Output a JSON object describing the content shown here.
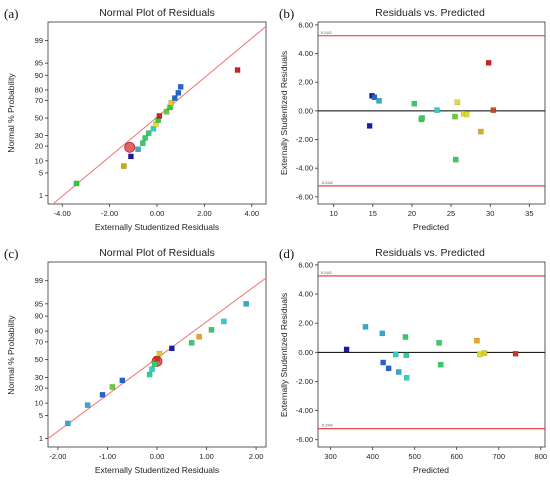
{
  "chart_data": [
    {
      "panel": "(a)",
      "type": "scatter",
      "title": "Normal Plot of Residuals",
      "xlabel": "Externally Studentized Residuals",
      "ylabel": "Normal % Probability",
      "xlim": [
        -4.6,
        4.6
      ],
      "ylim": [
        0.5,
        99.8
      ],
      "yscale": "probability",
      "xticks": [
        -4.0,
        -2.0,
        0.0,
        2.0,
        4.0
      ],
      "xticklabels": [
        "-4.00",
        "-2.00",
        "0.00",
        "2.00",
        "4.00"
      ],
      "yticks": [
        1,
        5,
        10,
        20,
        30,
        50,
        70,
        80,
        90,
        95,
        99
      ],
      "yticklabels": [
        "1",
        "5",
        "10",
        "20",
        "30",
        "50",
        "70",
        "80",
        "90",
        "95",
        "99"
      ],
      "reference_line": {
        "x": [
          -4.6,
          4.6
        ],
        "y": [
          0.35,
          99.7
        ]
      },
      "points": [
        {
          "x": -3.4,
          "y": 2.5,
          "color": "#33cc33"
        },
        {
          "x": -1.4,
          "y": 7.5,
          "color": "#ccaa00"
        },
        {
          "x": -1.1,
          "y": 12.5,
          "color": "#1a1aa8"
        },
        {
          "x": -0.8,
          "y": 17.5,
          "color": "#33aacc"
        },
        {
          "x": -0.6,
          "y": 22.5,
          "color": "#33cc66"
        },
        {
          "x": -0.5,
          "y": 27.5,
          "color": "#33cc66"
        },
        {
          "x": -0.35,
          "y": 32.5,
          "color": "#33cc66"
        },
        {
          "x": -0.15,
          "y": 37.5,
          "color": "#33cccc"
        },
        {
          "x": -0.05,
          "y": 42.5,
          "color": "#dddd33"
        },
        {
          "x": 0.05,
          "y": 47.5,
          "color": "#33cc33"
        },
        {
          "x": 0.1,
          "y": 52.5,
          "color": "#cc2222"
        },
        {
          "x": 0.4,
          "y": 57.5,
          "color": "#66cc33"
        },
        {
          "x": 0.55,
          "y": 62.5,
          "color": "#33cc33"
        },
        {
          "x": 0.6,
          "y": 67.5,
          "color": "#ddcc22"
        },
        {
          "x": 0.75,
          "y": 72.5,
          "color": "#2266cc"
        },
        {
          "x": 0.9,
          "y": 77.5,
          "color": "#2266cc"
        },
        {
          "x": 1.0,
          "y": 82.5,
          "color": "#2266cc"
        },
        {
          "x": 3.4,
          "y": 92.5,
          "color": "#cc2222"
        }
      ],
      "highlight": {
        "x": -1.15,
        "y": 19
      }
    },
    {
      "panel": "(b)",
      "type": "scatter",
      "title": "Residuals vs. Predicted",
      "xlabel": "Predicted",
      "ylabel": "Externally Studentized Residuals",
      "xlim": [
        8,
        37
      ],
      "ylim": [
        -6.5,
        6.2
      ],
      "xticks": [
        10,
        15,
        20,
        25,
        30,
        35
      ],
      "xticklabels": [
        "10",
        "15",
        "20",
        "25",
        "30",
        "35"
      ],
      "yticks": [
        -6,
        -4,
        -2,
        0,
        2,
        4,
        6
      ],
      "yticklabels": [
        "-6.00",
        "-4.00",
        "-2.00",
        "0.00",
        "2.00",
        "4.00",
        "6.00"
      ],
      "limit_lines": [
        5.24,
        -5.24
      ],
      "limit_labels": [
        "5.2442",
        "-5.2442"
      ],
      "points": [
        {
          "x": 14.6,
          "y": -1.05,
          "color": "#1a1aa8"
        },
        {
          "x": 14.9,
          "y": 1.05,
          "color": "#1a1aa8"
        },
        {
          "x": 15.2,
          "y": 0.95,
          "color": "#2266cc"
        },
        {
          "x": 15.8,
          "y": 0.7,
          "color": "#33aacc"
        },
        {
          "x": 20.3,
          "y": 0.5,
          "color": "#33cc66"
        },
        {
          "x": 21.2,
          "y": -0.6,
          "color": "#66cc33"
        },
        {
          "x": 21.3,
          "y": -0.5,
          "color": "#33cc66"
        },
        {
          "x": 23.2,
          "y": 0.05,
          "color": "#33cccc"
        },
        {
          "x": 25.5,
          "y": -0.4,
          "color": "#66cc33"
        },
        {
          "x": 25.6,
          "y": -3.4,
          "color": "#33cc66"
        },
        {
          "x": 25.8,
          "y": 0.6,
          "color": "#dddd33"
        },
        {
          "x": 26.6,
          "y": -0.2,
          "color": "#dddd33"
        },
        {
          "x": 27.0,
          "y": -0.25,
          "color": "#dddd33"
        },
        {
          "x": 28.8,
          "y": -1.45,
          "color": "#ddaa22"
        },
        {
          "x": 29.8,
          "y": 3.35,
          "color": "#cc2222"
        },
        {
          "x": 30.4,
          "y": 0.05,
          "color": "#cc4422"
        }
      ]
    },
    {
      "panel": "(c)",
      "type": "scatter",
      "title": "Normal Plot of Residuals",
      "xlabel": "Externally Studentized Residuals",
      "ylabel": "Normal % Probability",
      "xlim": [
        -2.2,
        2.2
      ],
      "ylim": [
        0.5,
        99.8
      ],
      "yscale": "probability",
      "xticks": [
        -2.0,
        -1.0,
        0.0,
        1.0,
        2.0
      ],
      "xticklabels": [
        "-2.00",
        "-1.00",
        "0.00",
        "1.00",
        "2.00"
      ],
      "yticks": [
        1,
        5,
        10,
        20,
        30,
        50,
        70,
        80,
        90,
        95,
        99
      ],
      "yticklabels": [
        "1",
        "5",
        "10",
        "20",
        "30",
        "50",
        "70",
        "80",
        "90",
        "95",
        "99"
      ],
      "reference_line": {
        "x": [
          -2.2,
          2.2
        ],
        "y": [
          1.0,
          99.2
        ]
      },
      "points": [
        {
          "x": -1.8,
          "y": 3.0,
          "color": "#33aacc"
        },
        {
          "x": -1.4,
          "y": 9.0,
          "color": "#33aacc"
        },
        {
          "x": -1.1,
          "y": 15.0,
          "color": "#2266cc"
        },
        {
          "x": -0.9,
          "y": 21.0,
          "color": "#66cc33"
        },
        {
          "x": -0.7,
          "y": 27.0,
          "color": "#2266cc"
        },
        {
          "x": -0.15,
          "y": 33.0,
          "color": "#33cc99"
        },
        {
          "x": -0.1,
          "y": 39.0,
          "color": "#33cccc"
        },
        {
          "x": -0.05,
          "y": 45.0,
          "color": "#33cc66"
        },
        {
          "x": 0.0,
          "y": 51.0,
          "color": "#cc3322"
        },
        {
          "x": 0.05,
          "y": 57.0,
          "color": "#ddcc22"
        },
        {
          "x": 0.3,
          "y": 63.0,
          "color": "#1a1aa8"
        },
        {
          "x": 0.7,
          "y": 69.0,
          "color": "#33cc66"
        },
        {
          "x": 0.85,
          "y": 75.0,
          "color": "#ddaa22"
        },
        {
          "x": 1.1,
          "y": 81.0,
          "color": "#33cc66"
        },
        {
          "x": 1.35,
          "y": 87.0,
          "color": "#33cccc"
        },
        {
          "x": 1.8,
          "y": 95.0,
          "color": "#33aacc"
        }
      ],
      "highlight": {
        "x": 0.0,
        "y": 48
      }
    },
    {
      "panel": "(d)",
      "type": "scatter",
      "title": "Residuals vs. Predicted",
      "xlabel": "Predicted",
      "ylabel": "Externally Studentized Residuals",
      "xlim": [
        270,
        810
      ],
      "ylim": [
        -6.5,
        6.2
      ],
      "xticks": [
        300,
        400,
        500,
        600,
        700,
        800
      ],
      "xticklabels": [
        "300",
        "400",
        "500",
        "600",
        "700",
        "800"
      ],
      "yticks": [
        -6,
        -4,
        -2,
        0,
        2,
        4,
        6
      ],
      "yticklabels": [
        "-6.00",
        "-4.00",
        "-2.00",
        "0.00",
        "2.00",
        "4.00",
        "6.00"
      ],
      "limit_lines": [
        5.24,
        -5.24
      ],
      "limit_labels": [
        "5.2442",
        "-5.2442"
      ],
      "points": [
        {
          "x": 338,
          "y": 0.2,
          "color": "#1a1aa8"
        },
        {
          "x": 383,
          "y": 1.75,
          "color": "#33aacc"
        },
        {
          "x": 423,
          "y": 1.3,
          "color": "#33aacc"
        },
        {
          "x": 425,
          "y": -0.7,
          "color": "#2266cc"
        },
        {
          "x": 438,
          "y": -1.1,
          "color": "#2266cc"
        },
        {
          "x": 455,
          "y": -0.15,
          "color": "#33cccc"
        },
        {
          "x": 462,
          "y": -1.35,
          "color": "#33aacc"
        },
        {
          "x": 478,
          "y": 1.05,
          "color": "#33cc66"
        },
        {
          "x": 480,
          "y": -0.2,
          "color": "#33cc99"
        },
        {
          "x": 481,
          "y": -1.75,
          "color": "#33cccc"
        },
        {
          "x": 558,
          "y": 0.65,
          "color": "#33cc66"
        },
        {
          "x": 562,
          "y": -0.85,
          "color": "#33cc66"
        },
        {
          "x": 648,
          "y": 0.8,
          "color": "#ddaa22"
        },
        {
          "x": 655,
          "y": -0.15,
          "color": "#dddd33"
        },
        {
          "x": 666,
          "y": -0.05,
          "color": "#ddcc22"
        },
        {
          "x": 740,
          "y": -0.1,
          "color": "#cc3322"
        }
      ]
    }
  ],
  "colors": {
    "reference_line": "#f08080",
    "limit_line": "#dd3333",
    "zero_line": "#000000",
    "highlight_fill": "#e06666",
    "highlight_stroke": "#aa2222"
  }
}
